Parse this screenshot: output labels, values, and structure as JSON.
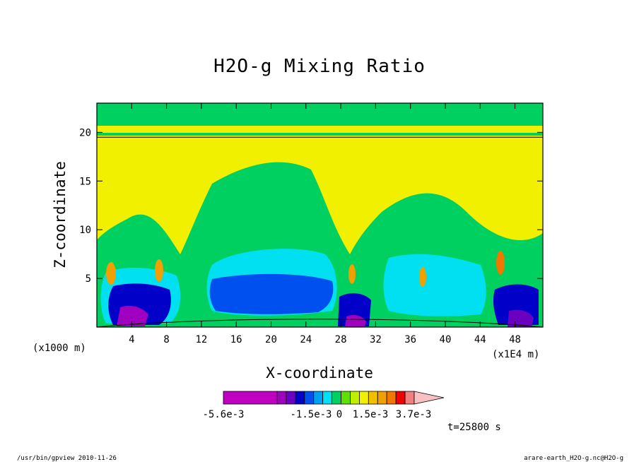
{
  "chart_data": {
    "type": "heatmap",
    "title": "H2O-g Mixing Ratio",
    "xlabel": "X-coordinate",
    "ylabel": "Z-coordinate",
    "x_unit": "(x1E4 m)",
    "y_unit": "(x1000 m)",
    "xlim": [
      0,
      51.2
    ],
    "ylim": [
      0,
      23
    ],
    "xticks": [
      4,
      8,
      12,
      16,
      20,
      24,
      28,
      32,
      36,
      40,
      44,
      48
    ],
    "yticks": [
      5,
      10,
      15,
      20
    ],
    "colorbar": {
      "colors": [
        "#c000c0",
        "#a000c0",
        "#6a00c0",
        "#0000c8",
        "#0050f0",
        "#00a0f0",
        "#00e0f0",
        "#00d060",
        "#60e000",
        "#c0f000",
        "#f0f000",
        "#f0c000",
        "#f0a000",
        "#f07800",
        "#f00000",
        "#f08080",
        "#f8c0c0"
      ],
      "tick_labels": [
        "-5.6e-3",
        "-1.5e-3",
        "0",
        "1.5e-3",
        "3.7e-3"
      ],
      "extend": "max"
    },
    "time_label": "t=25800 s"
  },
  "footer": {
    "left": "/usr/bin/gpview  2010-11-26",
    "right": "arare-earth_H2O-g.nc@H2O-g"
  }
}
